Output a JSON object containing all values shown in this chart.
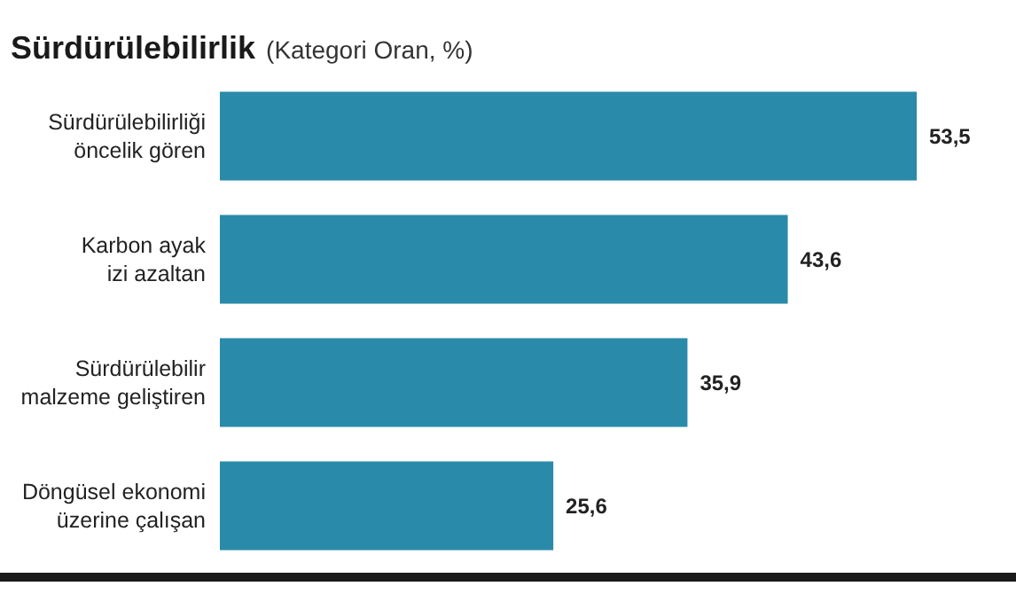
{
  "chart_data": {
    "type": "bar",
    "orientation": "horizontal",
    "title": "Sürdürülebilirlik",
    "subtitle": "(Kategori Oran, %)",
    "categories": [
      "Sürdürülebilirliği öncelik gören",
      "Karbon ayak izi azaltan",
      "Sürdürülebilir malzeme geliştiren",
      "Döngüsel ekonomi üzerine çalışan"
    ],
    "values": [
      53.5,
      43.6,
      35.9,
      25.6
    ],
    "value_labels": [
      "53,5",
      "43,6",
      "35,9",
      "25,6"
    ],
    "color": "#2a8aaa"
  }
}
